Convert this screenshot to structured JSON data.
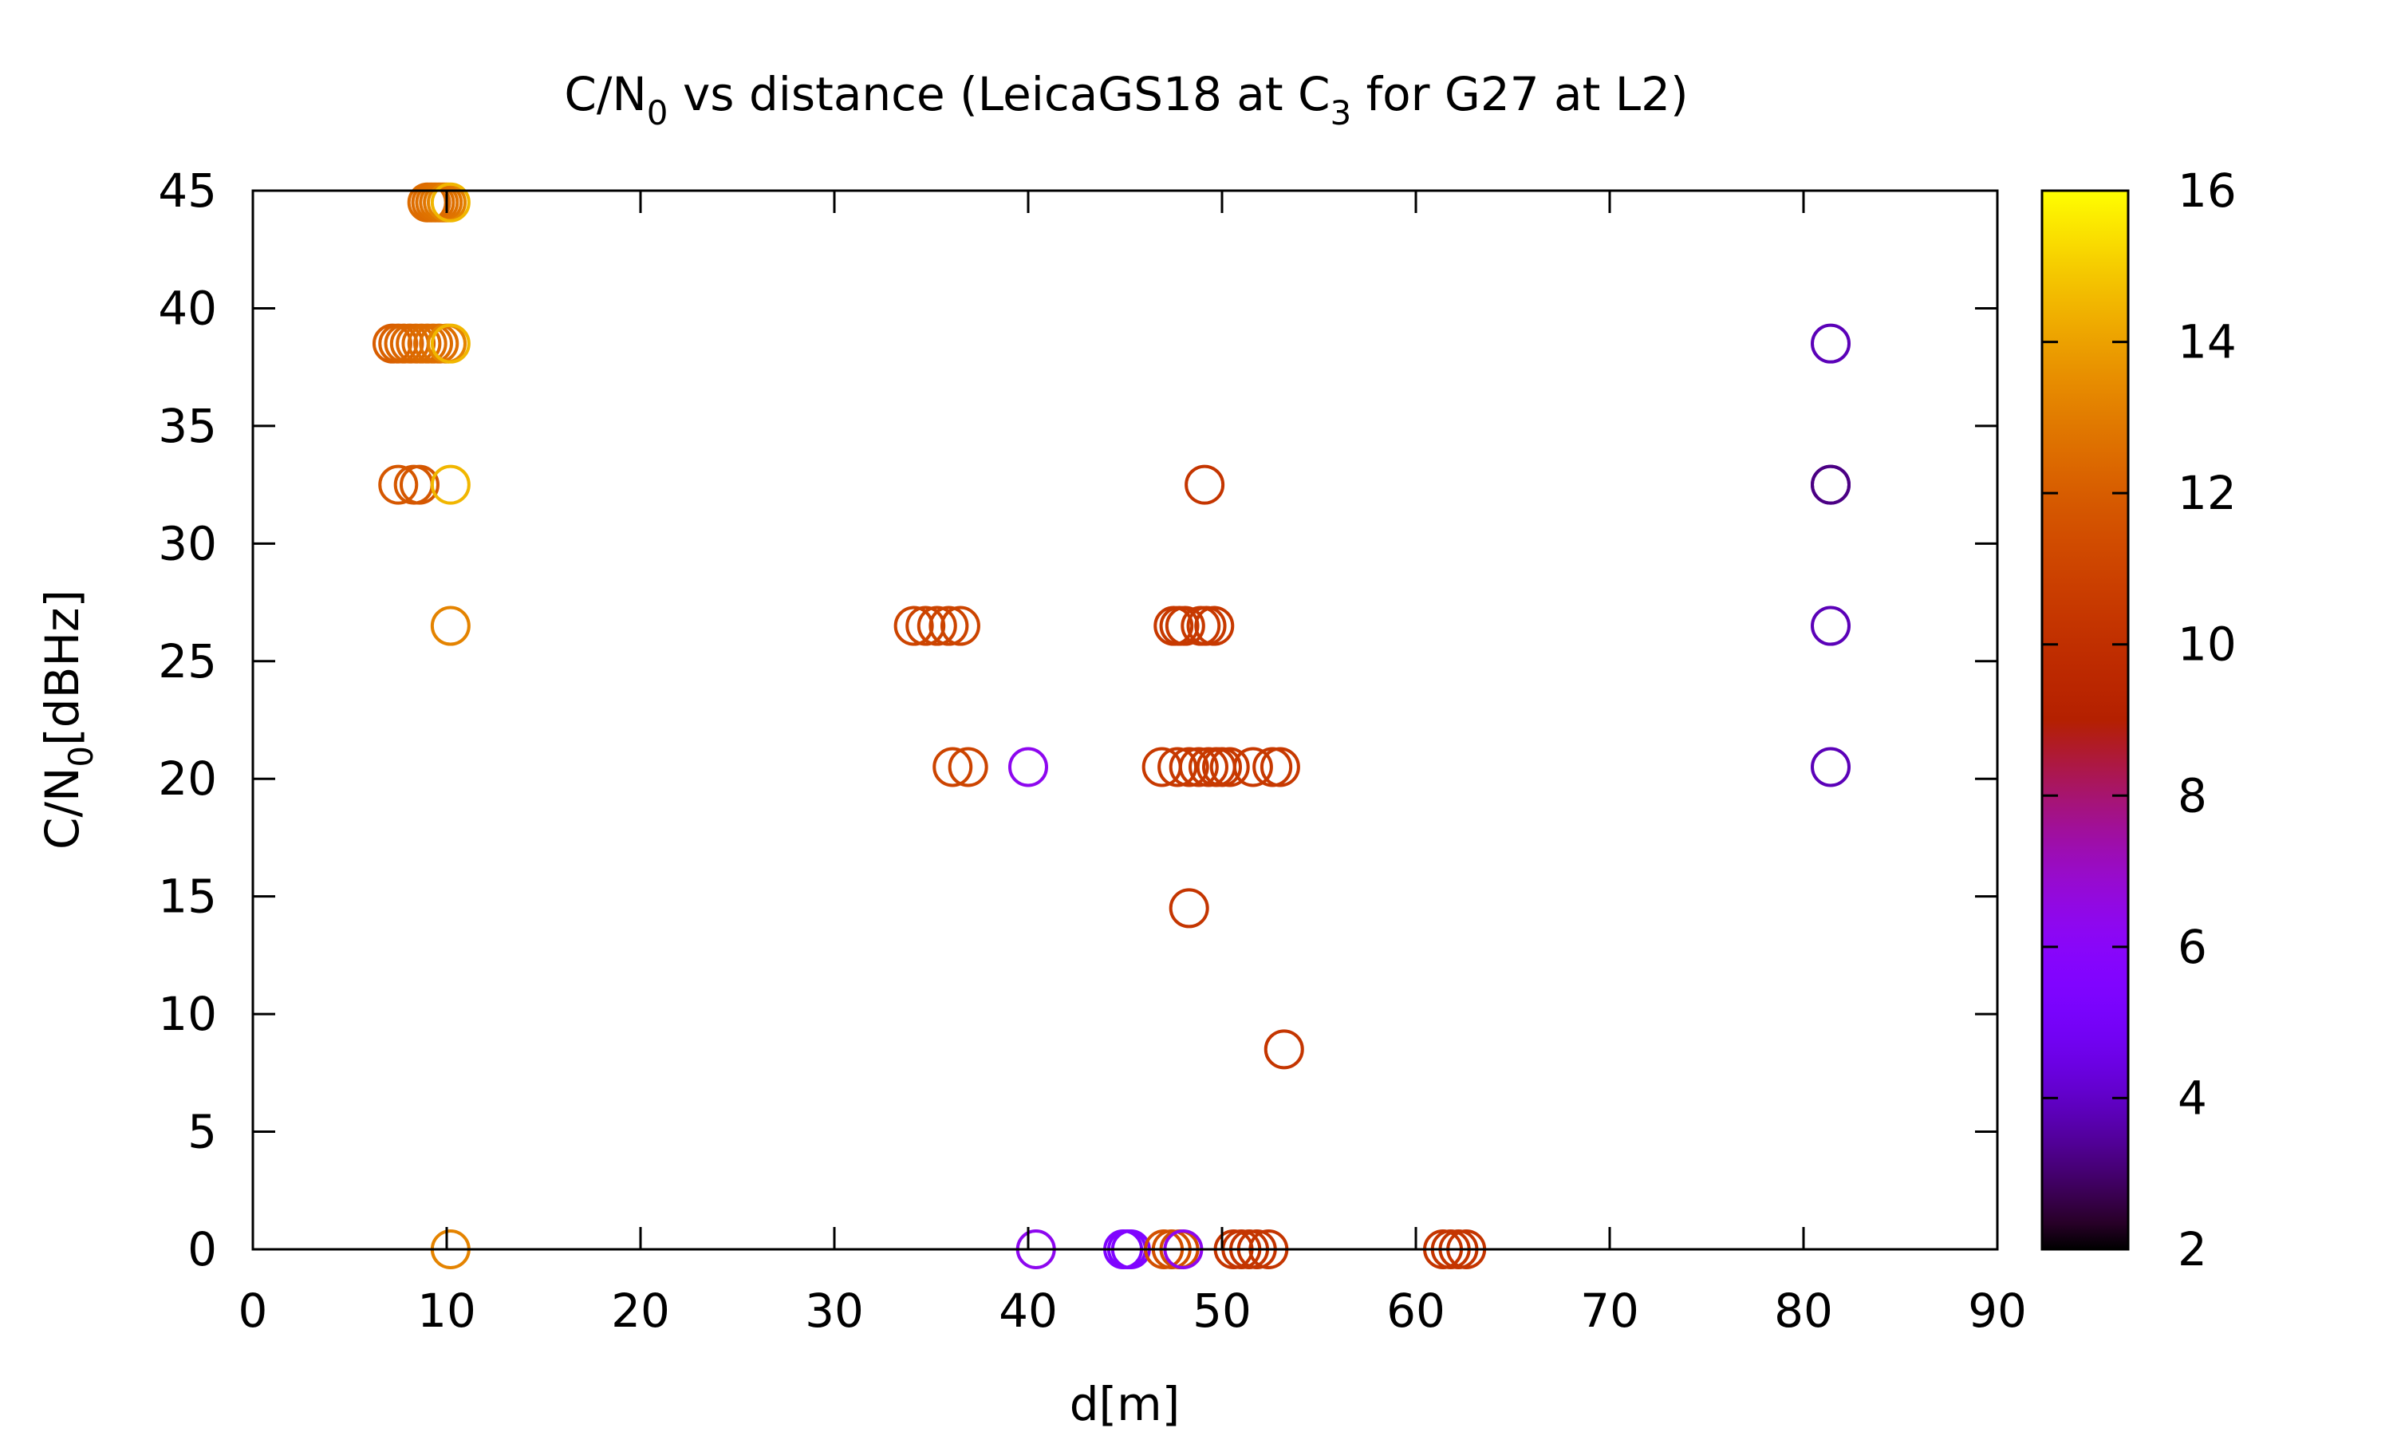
{
  "chart_data": {
    "type": "scatter",
    "title": {
      "pre": "C/N",
      "sub": "0",
      "mid": " vs distance (LeicaGS18 at C",
      "sub2": "3",
      "post": " for G27 at L2)"
    },
    "xlabel": "d[m]",
    "ylabel": {
      "pre": "C/N",
      "sub": "0",
      "post": "[dBHz]"
    },
    "xlim": [
      0,
      90
    ],
    "ylim": [
      0,
      45
    ],
    "x_ticks": [
      "0",
      "10",
      "20",
      "30",
      "40",
      "50",
      "60",
      "70",
      "80",
      "90"
    ],
    "y_ticks": [
      "0",
      "5",
      "10",
      "15",
      "20",
      "25",
      "30",
      "35",
      "40",
      "45"
    ],
    "colorbar": {
      "range": [
        2,
        16
      ],
      "ticks": [
        "2",
        "4",
        "6",
        "8",
        "10",
        "12",
        "14",
        "16"
      ],
      "palette": "black-blue-purple-red-orange-yellow"
    },
    "marker": "open-circle",
    "grid": false,
    "points": [
      {
        "x": 9.0,
        "y": 44.5,
        "c": 12.5
      },
      {
        "x": 9.2,
        "y": 44.5,
        "c": 12.5
      },
      {
        "x": 9.4,
        "y": 44.5,
        "c": 12.6
      },
      {
        "x": 9.6,
        "y": 44.5,
        "c": 12.7
      },
      {
        "x": 9.8,
        "y": 44.5,
        "c": 12.8
      },
      {
        "x": 10.0,
        "y": 44.5,
        "c": 13.2
      },
      {
        "x": 10.2,
        "y": 44.5,
        "c": 14.5
      },
      {
        "x": 7.2,
        "y": 38.5,
        "c": 12.0
      },
      {
        "x": 7.5,
        "y": 38.5,
        "c": 12.1
      },
      {
        "x": 7.8,
        "y": 38.5,
        "c": 12.2
      },
      {
        "x": 8.1,
        "y": 38.5,
        "c": 12.3
      },
      {
        "x": 8.4,
        "y": 38.5,
        "c": 12.3
      },
      {
        "x": 8.7,
        "y": 38.5,
        "c": 12.4
      },
      {
        "x": 9.0,
        "y": 38.5,
        "c": 12.5
      },
      {
        "x": 9.3,
        "y": 38.5,
        "c": 12.5
      },
      {
        "x": 9.6,
        "y": 38.5,
        "c": 12.6
      },
      {
        "x": 10.0,
        "y": 38.5,
        "c": 13.2
      },
      {
        "x": 10.2,
        "y": 38.5,
        "c": 14.5
      },
      {
        "x": 7.5,
        "y": 32.5,
        "c": 11.8
      },
      {
        "x": 8.3,
        "y": 32.5,
        "c": 11.8
      },
      {
        "x": 8.6,
        "y": 32.5,
        "c": 11.8
      },
      {
        "x": 10.2,
        "y": 32.5,
        "c": 14.5
      },
      {
        "x": 10.2,
        "y": 26.5,
        "c": 13.2
      },
      {
        "x": 10.2,
        "y": 0.0,
        "c": 13.2
      },
      {
        "x": 34.1,
        "y": 26.5,
        "c": 11.0
      },
      {
        "x": 34.7,
        "y": 26.5,
        "c": 11.0
      },
      {
        "x": 35.3,
        "y": 26.5,
        "c": 11.0
      },
      {
        "x": 35.9,
        "y": 26.5,
        "c": 11.0
      },
      {
        "x": 36.5,
        "y": 26.5,
        "c": 11.0
      },
      {
        "x": 36.1,
        "y": 20.5,
        "c": 11.0
      },
      {
        "x": 36.9,
        "y": 20.5,
        "c": 11.0
      },
      {
        "x": 40.0,
        "y": 20.5,
        "c": 6.3
      },
      {
        "x": 40.4,
        "y": 0.0,
        "c": 6.3
      },
      {
        "x": 44.9,
        "y": 0.0,
        "c": 5.5
      },
      {
        "x": 45.1,
        "y": 0.0,
        "c": 5.5
      },
      {
        "x": 45.3,
        "y": 0.0,
        "c": 5.5
      },
      {
        "x": 47.0,
        "y": 0.0,
        "c": 11.5
      },
      {
        "x": 47.4,
        "y": 0.0,
        "c": 11.5
      },
      {
        "x": 47.8,
        "y": 0.0,
        "c": 11.5
      },
      {
        "x": 48.0,
        "y": 0.0,
        "c": 6.3
      },
      {
        "x": 47.5,
        "y": 26.5,
        "c": 10.5
      },
      {
        "x": 47.8,
        "y": 26.5,
        "c": 10.5
      },
      {
        "x": 48.1,
        "y": 26.5,
        "c": 10.5
      },
      {
        "x": 48.9,
        "y": 26.5,
        "c": 10.5
      },
      {
        "x": 49.2,
        "y": 26.5,
        "c": 10.5
      },
      {
        "x": 49.6,
        "y": 26.5,
        "c": 10.5
      },
      {
        "x": 49.1,
        "y": 32.5,
        "c": 10.3
      },
      {
        "x": 46.9,
        "y": 20.5,
        "c": 10.5
      },
      {
        "x": 47.7,
        "y": 20.5,
        "c": 10.5
      },
      {
        "x": 48.3,
        "y": 20.5,
        "c": 10.5
      },
      {
        "x": 48.8,
        "y": 20.5,
        "c": 10.5
      },
      {
        "x": 49.3,
        "y": 20.5,
        "c": 10.5
      },
      {
        "x": 49.7,
        "y": 20.5,
        "c": 10.5
      },
      {
        "x": 50.0,
        "y": 20.5,
        "c": 10.5
      },
      {
        "x": 50.4,
        "y": 20.5,
        "c": 10.5
      },
      {
        "x": 51.6,
        "y": 20.5,
        "c": 10.5
      },
      {
        "x": 52.6,
        "y": 20.5,
        "c": 10.5
      },
      {
        "x": 53.0,
        "y": 20.5,
        "c": 10.5
      },
      {
        "x": 48.3,
        "y": 14.5,
        "c": 10.3
      },
      {
        "x": 53.2,
        "y": 8.5,
        "c": 10.3
      },
      {
        "x": 50.6,
        "y": 0.0,
        "c": 10.3
      },
      {
        "x": 51.0,
        "y": 0.0,
        "c": 10.3
      },
      {
        "x": 51.4,
        "y": 0.0,
        "c": 10.3
      },
      {
        "x": 51.8,
        "y": 0.0,
        "c": 10.3
      },
      {
        "x": 52.4,
        "y": 0.0,
        "c": 10.3
      },
      {
        "x": 61.4,
        "y": 0.0,
        "c": 10.3
      },
      {
        "x": 61.8,
        "y": 0.0,
        "c": 10.3
      },
      {
        "x": 62.2,
        "y": 0.0,
        "c": 10.3
      },
      {
        "x": 62.6,
        "y": 0.0,
        "c": 10.3
      },
      {
        "x": 81.4,
        "y": 38.5,
        "c": 3.8
      },
      {
        "x": 81.4,
        "y": 32.5,
        "c": 3.8
      },
      {
        "x": 81.4,
        "y": 32.5,
        "c": 3.2
      },
      {
        "x": 81.4,
        "y": 26.5,
        "c": 3.8
      },
      {
        "x": 81.4,
        "y": 20.5,
        "c": 3.8
      }
    ]
  }
}
